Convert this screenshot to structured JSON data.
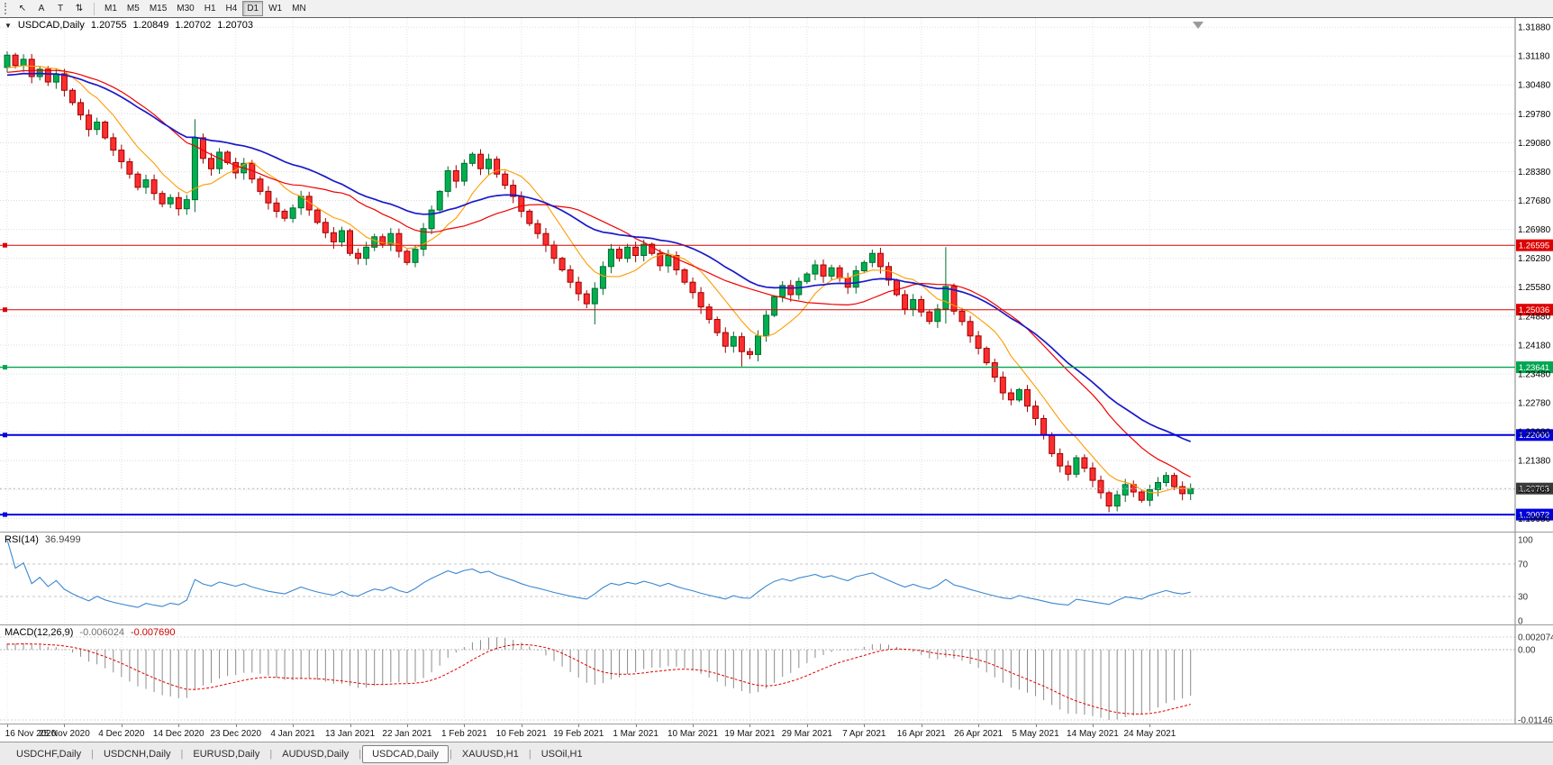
{
  "toolbar": {
    "tools": [
      {
        "name": "cursor",
        "glyph": "↖"
      },
      {
        "name": "text",
        "glyph": "A"
      },
      {
        "name": "text-label",
        "glyph": "T"
      },
      {
        "name": "scale",
        "glyph": "⇅"
      }
    ],
    "timeframes": [
      "M1",
      "M5",
      "M15",
      "M30",
      "H1",
      "H4",
      "D1",
      "W1",
      "MN"
    ],
    "active_timeframe": "D1"
  },
  "main_chart": {
    "collapse_glyph": "▼",
    "symbol": "USDCAD,Daily",
    "quote_open": "1.20755",
    "quote_high": "1.20849",
    "quote_low": "1.20702",
    "quote_close": "1.20703",
    "current_price": "1.20703",
    "y_axis_labels": [
      "1.31880",
      "1.31180",
      "1.30480",
      "1.29780",
      "1.29080",
      "1.28380",
      "1.27680",
      "1.26980",
      "1.26280",
      "1.25580",
      "1.24880",
      "1.24180",
      "1.23480",
      "1.22780",
      "1.22080",
      "1.21380",
      "1.20680",
      "1.19980"
    ],
    "hlines": [
      {
        "price": 1.26595,
        "label": "1.26595",
        "color": "#dd0000",
        "width": 1
      },
      {
        "price": 1.25036,
        "label": "1.25036",
        "color": "#dd0000",
        "width": 1
      },
      {
        "price": 1.23641,
        "label": "1.23641",
        "color": "#00a650",
        "width": 1.4
      },
      {
        "price": 1.22,
        "label": "1.22000",
        "color": "#0000dd",
        "width": 2
      },
      {
        "price": 1.20072,
        "label": "1.20072",
        "color": "#0000dd",
        "width": 2
      }
    ]
  },
  "rsi_panel": {
    "name": "RSI(14)",
    "value": "36.9499",
    "levels": [
      {
        "v": 100,
        "label": "100"
      },
      {
        "v": 70,
        "label": "70"
      },
      {
        "v": 30,
        "label": "30"
      },
      {
        "v": 0,
        "label": "0"
      }
    ]
  },
  "macd_panel": {
    "name": "MACD(12,26,9)",
    "value": "-0.006024",
    "signal": "-0.007690",
    "levels": [
      {
        "pos": "max",
        "label": "0.002074"
      },
      {
        "pos": "zero",
        "label": "0.00"
      },
      {
        "pos": "min",
        "label": "-0.011462"
      }
    ]
  },
  "tab_bar": {
    "tabs": [
      "USDCHF,Daily",
      "USDCNH,Daily",
      "EURUSD,Daily",
      "AUDUSD,Daily",
      "USDCAD,Daily",
      "XAUUSD,H1",
      "USOil,H1"
    ],
    "active": "USDCAD,Daily"
  },
  "chart_data": {
    "type": "candlestick",
    "symbol": "USDCAD",
    "timeframe": "Daily",
    "x_date_labels": [
      "16 Nov 2020",
      "25 Nov 2020",
      "4 Dec 2020",
      "14 Dec 2020",
      "23 Dec 2020",
      "4 Jan 2021",
      "13 Jan 2021",
      "22 Jan 2021",
      "1 Feb 2021",
      "10 Feb 2021",
      "19 Feb 2021",
      "1 Mar 2021",
      "10 Mar 2021",
      "19 Mar 2021",
      "29 Mar 2021",
      "7 Apr 2021",
      "16 Apr 2021",
      "26 Apr 2021",
      "5 May 2021",
      "14 May 2021",
      "24 May 2021"
    ],
    "bars_per_label": 7,
    "ylim": [
      1.1966,
      1.321
    ],
    "y_tick_step": 0.007,
    "last_price": 1.20703,
    "closes": [
      1.312,
      1.3095,
      1.311,
      1.3068,
      1.3086,
      1.3055,
      1.3075,
      1.3035,
      1.3005,
      1.2975,
      1.294,
      1.2958,
      1.292,
      1.289,
      1.2862,
      1.2832,
      1.28,
      1.2818,
      1.2785,
      1.276,
      1.2775,
      1.2748,
      1.277,
      1.292,
      1.287,
      1.2845,
      1.2885,
      1.286,
      1.2835,
      1.2858,
      1.282,
      1.279,
      1.2762,
      1.2742,
      1.2725,
      1.275,
      1.2778,
      1.2745,
      1.2715,
      1.269,
      1.2668,
      1.2695,
      1.264,
      1.2628,
      1.2655,
      1.268,
      1.2662,
      1.2688,
      1.2645,
      1.2618,
      1.265,
      1.27,
      1.2745,
      1.279,
      1.284,
      1.2815,
      1.2858,
      1.288,
      1.2845,
      1.2868,
      1.2832,
      1.2805,
      1.2778,
      1.2742,
      1.2712,
      1.2688,
      1.266,
      1.2628,
      1.26,
      1.257,
      1.2542,
      1.2518,
      1.2555,
      1.2608,
      1.265,
      1.2628,
      1.2655,
      1.2635,
      1.2662,
      1.264,
      1.261,
      1.2635,
      1.26,
      1.257,
      1.2545,
      1.251,
      1.248,
      1.2448,
      1.2415,
      1.2438,
      1.2402,
      1.2395,
      1.244,
      1.249,
      1.2535,
      1.2562,
      1.254,
      1.2572,
      1.259,
      1.2612,
      1.2585,
      1.2605,
      1.258,
      1.2558,
      1.2598,
      1.2618,
      1.264,
      1.2608,
      1.2575,
      1.254,
      1.2505,
      1.2528,
      1.2498,
      1.2475,
      1.2505,
      1.256,
      1.25,
      1.2475,
      1.244,
      1.241,
      1.2375,
      1.234,
      1.2302,
      1.2285,
      1.231,
      1.227,
      1.224,
      1.22,
      1.2155,
      1.2125,
      1.2105,
      1.2145,
      1.212,
      1.209,
      1.206,
      1.2028,
      1.2055,
      1.208,
      1.2062,
      1.2042,
      1.2068,
      1.2085,
      1.2102,
      1.2075,
      1.2058,
      1.20703
    ],
    "open_rule": "previous_close",
    "wick_overrides": {
      "23": [
        1.2965,
        1.274
      ],
      "72": [
        1.257,
        1.2468
      ],
      "90": [
        1.2448,
        1.2366
      ],
      "115": [
        1.2655,
        1.247
      ],
      "135": [
        1.2065,
        1.2013
      ]
    },
    "prehistory": {
      "bars": 60,
      "from": 1.3,
      "to": 1.309
    },
    "moving_averages": [
      {
        "type": "sma",
        "period": 8,
        "color": "#ff9c00",
        "w": 1.1
      },
      {
        "type": "sma",
        "period": 20,
        "color": "#f00000",
        "w": 1.2
      },
      {
        "type": "ema",
        "period": 30,
        "color": "#1919c8",
        "w": 1.7
      }
    ],
    "indicators": {
      "rsi": {
        "period": 14,
        "last": 36.9499,
        "levels": [
          100,
          70,
          30,
          0
        ],
        "color": "#3a87d0"
      },
      "macd": {
        "fast": 12,
        "slow": 26,
        "signal": 9,
        "last": -0.006024,
        "signal_last": -0.00769,
        "scale_labels": [
          0.002074,
          0.0,
          -0.011462
        ]
      }
    }
  }
}
